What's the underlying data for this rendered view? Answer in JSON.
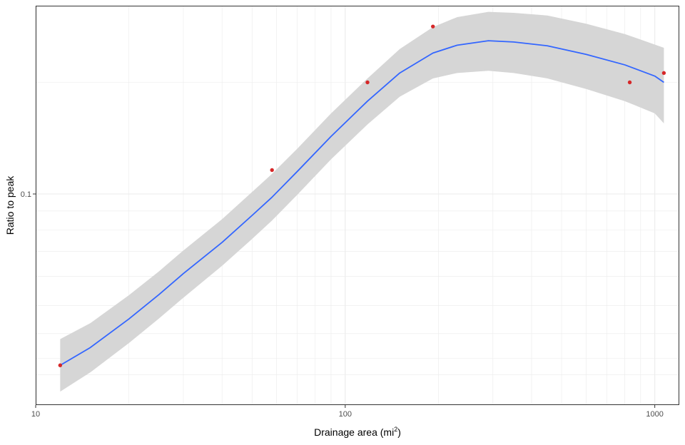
{
  "chart_data": {
    "type": "scatter",
    "title": "",
    "xlabel": "Drainage area (mi",
    "xlabel_sup": "2",
    "xlabel_close": ")",
    "ylabel": "Ratio to peak",
    "x_scale": "log10",
    "y_scale": "log10",
    "xlim": [
      10,
      1200
    ],
    "ylim": [
      0.02695,
      0.322
    ],
    "x_ticks": [
      {
        "value": 10,
        "label": "10"
      },
      {
        "value": 100,
        "label": "100"
      },
      {
        "value": 1000,
        "label": "1000"
      }
    ],
    "x_minor_ticks": [
      20,
      30,
      40,
      50,
      60,
      70,
      80,
      90,
      200,
      300,
      400,
      500,
      600,
      700,
      800,
      900
    ],
    "y_ticks": [
      {
        "value": 0.1,
        "label": "0.1"
      }
    ],
    "y_grid_lines": [
      0.0325,
      0.036,
      0.042,
      0.05,
      0.06,
      0.07,
      0.08,
      0.09,
      0.1,
      0.2
    ],
    "grid": true,
    "legend": "none",
    "colors": {
      "points": "#d62728",
      "fit_line": "#3366ff",
      "confidence_band": "#d6d6d6",
      "grid": "#ebebeb",
      "panel_border": "#333333"
    },
    "series": [
      {
        "kind": "points",
        "x": [
          12,
          58,
          118,
          192,
          830,
          1070
        ],
        "y": [
          0.0345,
          0.116,
          0.2,
          0.283,
          0.2,
          0.212
        ]
      },
      {
        "kind": "smooth",
        "x": [
          12,
          15,
          20,
          25,
          30,
          40,
          50,
          58,
          70,
          90,
          118,
          150,
          192,
          230,
          290,
          350,
          450,
          600,
          800,
          1000,
          1070
        ],
        "y": [
          0.0345,
          0.0385,
          0.046,
          0.0535,
          0.061,
          0.074,
          0.0875,
          0.098,
          0.115,
          0.143,
          0.178,
          0.212,
          0.24,
          0.252,
          0.259,
          0.257,
          0.251,
          0.238,
          0.223,
          0.208,
          0.2
        ],
        "lower": [
          0.0293,
          0.033,
          0.0396,
          0.0461,
          0.0525,
          0.064,
          0.0756,
          0.0848,
          0.0995,
          0.124,
          0.154,
          0.183,
          0.205,
          0.212,
          0.215,
          0.212,
          0.205,
          0.192,
          0.178,
          0.165,
          0.155
        ],
        "upper": [
          0.0406,
          0.0448,
          0.0533,
          0.0618,
          0.0704,
          0.0855,
          0.1012,
          0.1133,
          0.1325,
          0.165,
          0.205,
          0.246,
          0.282,
          0.3,
          0.31,
          0.308,
          0.303,
          0.288,
          0.27,
          0.253,
          0.248
        ]
      }
    ]
  }
}
